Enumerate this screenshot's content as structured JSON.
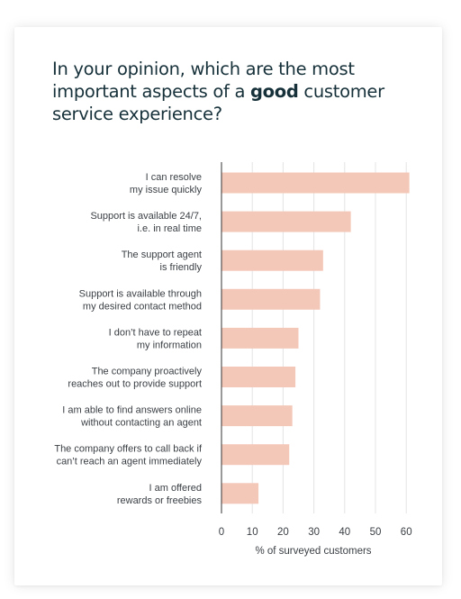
{
  "title": {
    "part1": "In your opinion, which are the most important aspects of a ",
    "emphasis": "good",
    "part2": " customer service experience?"
  },
  "colors": {
    "bar": "#f4c8b8",
    "grid": "#e4e4e4",
    "axis": "#333333",
    "title": "#17313a"
  },
  "chart_data": {
    "type": "bar",
    "orientation": "horizontal",
    "title": "In your opinion, which are the most important aspects of a good customer service experience?",
    "xlabel": "% of surveyed customers",
    "ylabel": "",
    "xlim": [
      0,
      65
    ],
    "xticks": [
      0,
      10,
      20,
      30,
      40,
      50,
      60
    ],
    "grid": "vertical",
    "categories": [
      [
        "I can resolve",
        "my issue quickly"
      ],
      [
        "Support is available 24/7,",
        "i.e. in real time"
      ],
      [
        "The support agent",
        "is friendly"
      ],
      [
        "Support is available through",
        "my desired contact method"
      ],
      [
        "I don’t have to repeat",
        "my information"
      ],
      [
        "The company proactively",
        "reaches out to provide support"
      ],
      [
        "I am able to find answers online",
        "without contacting an agent"
      ],
      [
        "The company offers to call back if",
        "can’t reach an agent immediately"
      ],
      [
        "I am offered",
        "rewards or freebies"
      ]
    ],
    "values": [
      61,
      42,
      33,
      32,
      25,
      24,
      23,
      22,
      12
    ]
  }
}
